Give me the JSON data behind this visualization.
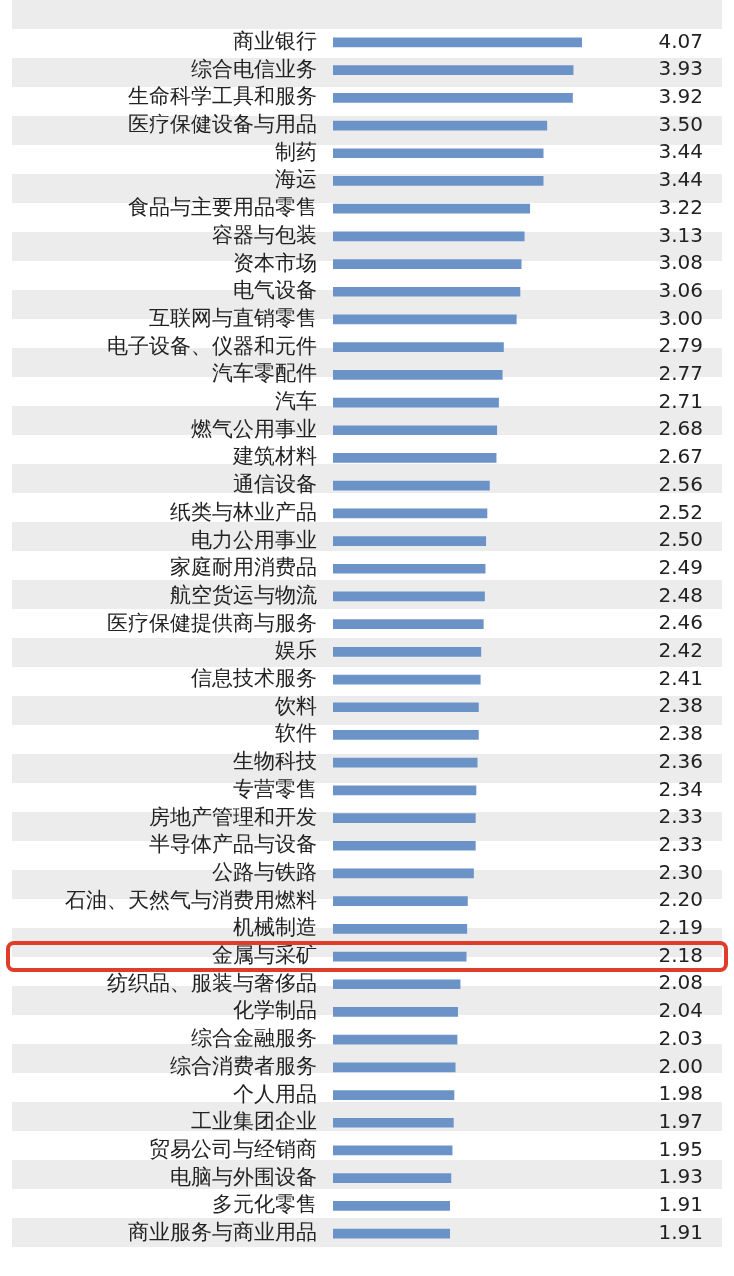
{
  "chart_data": {
    "type": "bar",
    "orientation": "horizontal",
    "grid": false,
    "legend": false,
    "tick_labels": "y",
    "value_labels": [
      "4.07",
      "3.93",
      "3.92",
      "3.50",
      "3.44",
      "3.44",
      "3.22",
      "3.13",
      "3.08",
      "3.06",
      "3.00",
      "2.79",
      "2.77",
      "2.71",
      "2.68",
      "2.67",
      "2.56",
      "2.52",
      "2.50",
      "2.49",
      "2.48",
      "2.46",
      "2.42",
      "2.41",
      "2.38",
      "2.38",
      "2.36",
      "2.34",
      "2.33",
      "2.33",
      "2.30",
      "2.20",
      "2.19",
      "2.18",
      "2.08",
      "2.04",
      "2.03",
      "2.00",
      "1.98",
      "1.97",
      "1.95",
      "1.93",
      "1.91",
      "1.91"
    ],
    "categories": [
      "商业银行",
      "综合电信业务",
      "生命科学工具和服务",
      "医疗保健设备与用品",
      "制药",
      "海运",
      "食品与主要用品零售",
      "容器与包装",
      "资本市场",
      "电气设备",
      "互联网与直销零售",
      "电子设备、仪器和元件",
      "汽车零配件",
      "汽车",
      "燃气公用事业",
      "建筑材料",
      "通信设备",
      "纸类与林业产品",
      "电力公用事业",
      "家庭耐用消费品",
      "航空货运与物流",
      "医疗保健提供商与服务",
      "娱乐",
      "信息技术服务",
      "饮料",
      "软件",
      "生物科技",
      "专营零售",
      "房地产管理和开发",
      "半导体产品与设备",
      "公路与铁路",
      "石油、天然气与消费用燃料",
      "机械制造",
      "金属与采矿",
      "纺织品、服装与奢侈品",
      "化学制品",
      "综合金融服务",
      "综合消费者服务",
      "个人用品",
      "工业集团企业",
      "贸易公司与经销商",
      "电脑与外围设备",
      "多元化零售",
      "商业服务与商业用品"
    ],
    "values": [
      4.07,
      3.93,
      3.92,
      3.5,
      3.44,
      3.44,
      3.22,
      3.13,
      3.08,
      3.06,
      3.0,
      2.79,
      2.77,
      2.71,
      2.68,
      2.67,
      2.56,
      2.52,
      2.5,
      2.49,
      2.48,
      2.46,
      2.42,
      2.41,
      2.38,
      2.38,
      2.36,
      2.34,
      2.33,
      2.33,
      2.3,
      2.2,
      2.19,
      2.18,
      2.08,
      2.04,
      2.03,
      2.0,
      1.98,
      1.97,
      1.95,
      1.93,
      1.91,
      1.91
    ],
    "color": "#6b93c8"
  }
}
